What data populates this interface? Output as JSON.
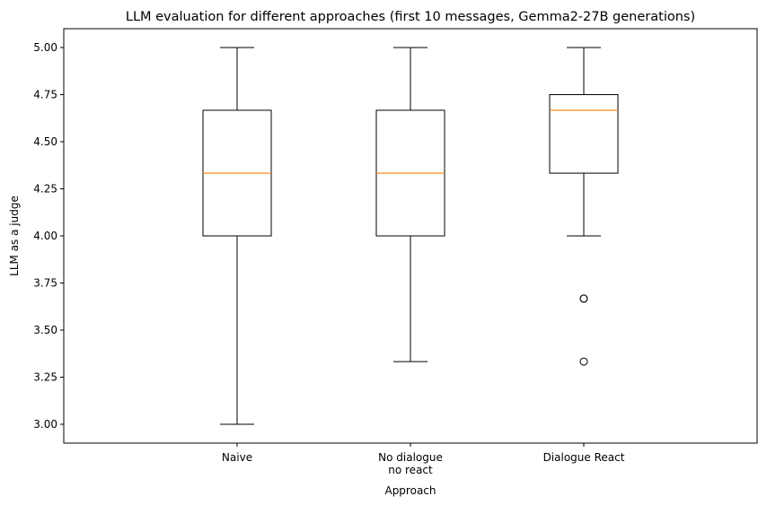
{
  "chart_data": {
    "type": "box",
    "title": "LLM evaluation for different approaches (first 10 messages, Gemma2-27B generations)",
    "xlabel": "Approach",
    "ylabel": "LLM as a judge",
    "ylim": [
      2.9,
      5.1
    ],
    "yticks": [
      3.0,
      3.25,
      3.5,
      3.75,
      4.0,
      4.25,
      4.5,
      4.75,
      5.0
    ],
    "ytick_labels": [
      "3.00",
      "3.25",
      "3.50",
      "3.75",
      "4.00",
      "4.25",
      "4.50",
      "4.75",
      "5.00"
    ],
    "grid": false,
    "median_color": "#ff7f0e",
    "box_color": "#000000",
    "categories": [
      [
        "Naive"
      ],
      [
        "No dialogue",
        "no react"
      ],
      [
        "Dialogue React"
      ]
    ],
    "boxes": [
      {
        "whisker_low": 3.0,
        "q1": 4.0,
        "median": 4.333,
        "q3": 4.667,
        "whisker_high": 5.0,
        "outliers": []
      },
      {
        "whisker_low": 3.333,
        "q1": 4.0,
        "median": 4.333,
        "q3": 4.667,
        "whisker_high": 5.0,
        "outliers": []
      },
      {
        "whisker_low": 4.0,
        "q1": 4.333,
        "median": 4.667,
        "q3": 4.75,
        "whisker_high": 5.0,
        "outliers": [
          3.667,
          3.667,
          3.333
        ]
      }
    ]
  }
}
